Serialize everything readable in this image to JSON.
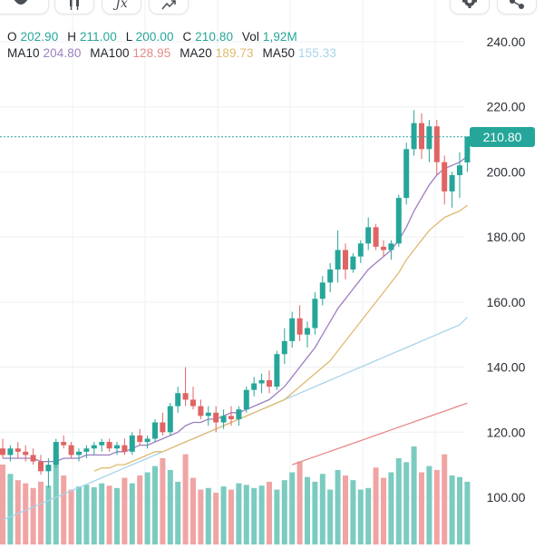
{
  "toolbar": {
    "items": [
      {
        "name": "indicator-icon"
      },
      {
        "name": "candle-style-icon"
      },
      {
        "name": "function-icon",
        "label": "Jx"
      },
      {
        "name": "compare-icon"
      },
      {
        "name": "gear-icon"
      },
      {
        "name": "share-icon"
      }
    ]
  },
  "legend": {
    "ohlc": [
      {
        "key": "O",
        "value": "202.90"
      },
      {
        "key": "H",
        "value": "211.00"
      },
      {
        "key": "L",
        "value": "200.00"
      },
      {
        "key": "C",
        "value": "210.80"
      },
      {
        "key": "Vol",
        "value": "1,92M"
      }
    ],
    "mas": [
      {
        "key": "MA10",
        "value": "204.80",
        "color": "#9c7fc0"
      },
      {
        "key": "MA100",
        "value": "128.95",
        "color": "#e58a8a"
      },
      {
        "key": "MA20",
        "value": "189.73",
        "color": "#e0ba70"
      },
      {
        "key": "MA50",
        "value": "155.33",
        "color": "#a8d4e8"
      }
    ],
    "value_color": "#26a69a"
  },
  "last_price_label": "210.80",
  "colors": {
    "up": "#26a69a",
    "down": "#e06464",
    "vol_up": "#7ccbc0",
    "vol_down": "#f1a4a4",
    "grid": "#eef0f3",
    "axis_text": "#2b2f36",
    "last_price_line": "#26a69a"
  },
  "chart_data": {
    "type": "candlestick",
    "y_axis": {
      "ticks": [
        "240.00",
        "220.00",
        "200.00",
        "180.00",
        "160.00",
        "140.00",
        "120.00",
        "100.00"
      ],
      "range": [
        88,
        250
      ]
    },
    "candles": [
      [
        115,
        118,
        112,
        113
      ],
      [
        113,
        116,
        111,
        115
      ],
      [
        115,
        117,
        112,
        114
      ],
      [
        114,
        116,
        111,
        113
      ],
      [
        113,
        115,
        110,
        111
      ],
      [
        111,
        113,
        107,
        108
      ],
      [
        108,
        112,
        103,
        110
      ],
      [
        110,
        118,
        109,
        117
      ],
      [
        117,
        119,
        115,
        116
      ],
      [
        116,
        117,
        112,
        113
      ],
      [
        113,
        115,
        111,
        114
      ],
      [
        114,
        116,
        112,
        115
      ],
      [
        115,
        117,
        113,
        116
      ],
      [
        116,
        118,
        114,
        117
      ],
      [
        117,
        118,
        114,
        115
      ],
      [
        115,
        117,
        113,
        116
      ],
      [
        116,
        118,
        113,
        114
      ],
      [
        114,
        120,
        113,
        119
      ],
      [
        119,
        121,
        116,
        117
      ],
      [
        117,
        119,
        115,
        118
      ],
      [
        118,
        124,
        117,
        123
      ],
      [
        123,
        126,
        119,
        120
      ],
      [
        120,
        129,
        119,
        128
      ],
      [
        128,
        134,
        126,
        132
      ],
      [
        132,
        140,
        128,
        130
      ],
      [
        130,
        134,
        127,
        128
      ],
      [
        128,
        130,
        124,
        125
      ],
      [
        125,
        128,
        122,
        126
      ],
      [
        126,
        128,
        120,
        123
      ],
      [
        123,
        127,
        121,
        125
      ],
      [
        125,
        128,
        122,
        124
      ],
      [
        124,
        128,
        122,
        127
      ],
      [
        127,
        134,
        126,
        133
      ],
      [
        133,
        137,
        131,
        135
      ],
      [
        135,
        138,
        132,
        136
      ],
      [
        136,
        139,
        132,
        134
      ],
      [
        134,
        145,
        133,
        144
      ],
      [
        144,
        152,
        141,
        148
      ],
      [
        148,
        157,
        146,
        155
      ],
      [
        155,
        159,
        148,
        150
      ],
      [
        150,
        154,
        146,
        152
      ],
      [
        152,
        163,
        150,
        161
      ],
      [
        161,
        168,
        159,
        166
      ],
      [
        166,
        172,
        163,
        170
      ],
      [
        170,
        182,
        166,
        176
      ],
      [
        176,
        178,
        167,
        170
      ],
      [
        170,
        175,
        169,
        174
      ],
      [
        174,
        179,
        172,
        178
      ],
      [
        178,
        186,
        176,
        183
      ],
      [
        183,
        184,
        176,
        177
      ],
      [
        177,
        179,
        174,
        176
      ],
      [
        176,
        179,
        173,
        178
      ],
      [
        178,
        193,
        177,
        192
      ],
      [
        192,
        209,
        190,
        207
      ],
      [
        207,
        219,
        205,
        215
      ],
      [
        215,
        218,
        204,
        207
      ],
      [
        207,
        216,
        203,
        214
      ],
      [
        214,
        216,
        199,
        203
      ],
      [
        203,
        205,
        190,
        194
      ],
      [
        194,
        200,
        189,
        199
      ],
      [
        199,
        206,
        192,
        202
      ],
      [
        202.9,
        211,
        200,
        210.8
      ]
    ],
    "volume": [
      102,
      90,
      82,
      78,
      72,
      80,
      75,
      115,
      88,
      70,
      74,
      76,
      73,
      78,
      75,
      72,
      85,
      78,
      88,
      92,
      100,
      110,
      95,
      80,
      115,
      85,
      70,
      72,
      66,
      74,
      70,
      78,
      76,
      72,
      75,
      80,
      70,
      82,
      92,
      106,
      86,
      80,
      90,
      70,
      95,
      88,
      82,
      70,
      72,
      98,
      85,
      92,
      110,
      105,
      125,
      92,
      100,
      95,
      115,
      88,
      86,
      80
    ],
    "ma10": [
      112,
      112,
      112,
      112,
      112,
      111,
      111,
      111,
      112,
      112,
      112,
      113,
      113,
      113,
      113,
      114,
      114,
      115,
      116,
      116,
      117,
      118,
      119,
      120,
      122,
      123,
      123,
      124,
      124,
      125,
      126,
      126,
      127,
      128,
      129,
      130,
      132,
      134,
      137,
      140,
      143,
      146,
      150,
      154,
      158,
      161,
      164,
      167,
      170,
      172,
      174,
      176,
      179,
      183,
      188,
      192,
      196,
      199,
      201,
      202,
      203,
      204.8
    ],
    "ma20": [
      null,
      null,
      null,
      null,
      null,
      null,
      null,
      null,
      null,
      null,
      null,
      null,
      108,
      109,
      109,
      110,
      110,
      111,
      112,
      113,
      114,
      114,
      115,
      116,
      117,
      118,
      119,
      120,
      121,
      122,
      123,
      124,
      125,
      126,
      127,
      128,
      129,
      130,
      132,
      134,
      136,
      138,
      140,
      142,
      145,
      148,
      151,
      154,
      157,
      160,
      163,
      166,
      169,
      173,
      176,
      179,
      182,
      184,
      186,
      187,
      188,
      189.73
    ],
    "ma50": [
      null,
      null,
      null,
      null,
      null,
      null,
      null,
      null,
      null,
      null,
      null,
      null,
      null,
      null,
      null,
      null,
      null,
      null,
      null,
      null,
      null,
      null,
      null,
      null,
      null,
      null,
      null,
      null,
      null,
      null,
      null,
      null,
      null,
      null,
      null,
      null,
      null,
      null,
      null,
      null,
      null,
      null,
      null,
      null,
      null,
      null,
      null,
      null,
      null,
      null,
      null,
      null,
      null,
      null,
      null,
      null,
      null,
      null,
      null,
      null,
      null,
      155.33
    ],
    "ma50_full": [
      93,
      94,
      95,
      96,
      97,
      98,
      99,
      100,
      101,
      102,
      103,
      104,
      105,
      106,
      107,
      108,
      109,
      110,
      111,
      112,
      113,
      114,
      115,
      116,
      117,
      118,
      119,
      120,
      121,
      122,
      123,
      124,
      125,
      126,
      127,
      128,
      129,
      130,
      131,
      132,
      133,
      134,
      135,
      136,
      137,
      138,
      139,
      140,
      141,
      142,
      143,
      144,
      145,
      146,
      147,
      148,
      149,
      150,
      151,
      152,
      153,
      155.33
    ],
    "ma100_segment": {
      "start_index": 38,
      "values_start": 110,
      "values_end": 128.95
    }
  }
}
